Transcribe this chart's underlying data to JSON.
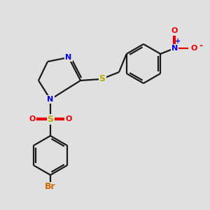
{
  "background_color": "#e0e0e0",
  "bond_color": "#1a1a1a",
  "bond_width": 1.6,
  "atom_colors": {
    "N": "#0000ee",
    "S_sulfonyl": "#bbaa00",
    "S_thio": "#bbaa00",
    "O_sulfonyl": "#ee0000",
    "O_nitro": "#ee0000",
    "N_nitro": "#0000ee",
    "Br": "#cc6600"
  },
  "figsize": [
    3.0,
    3.0
  ],
  "dpi": 100,
  "xlim": [
    0,
    300
  ],
  "ylim": [
    0,
    300
  ]
}
